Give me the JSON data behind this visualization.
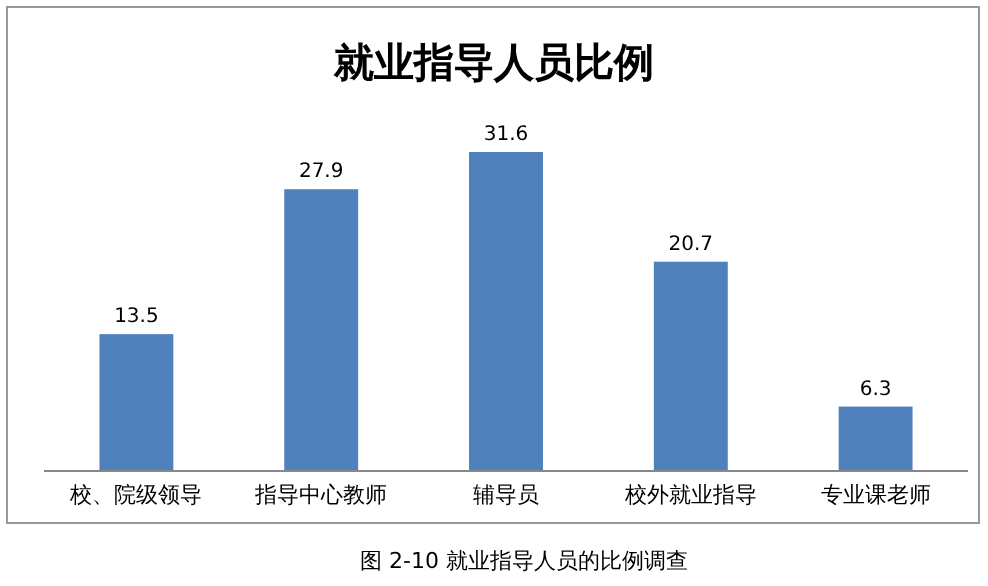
{
  "chart_data": {
    "type": "bar",
    "title": "就业指导人员比例",
    "categories": [
      "校、院级领导",
      "指导中心教师",
      "辅导员",
      "校外就业指导",
      "专业课老师"
    ],
    "values": [
      13.5,
      27.9,
      31.6,
      20.7,
      6.3
    ],
    "color": "#4f81bd",
    "data_labels": true,
    "annotations": [
      "图 2-10 就业指导人员的比例调查"
    ]
  }
}
